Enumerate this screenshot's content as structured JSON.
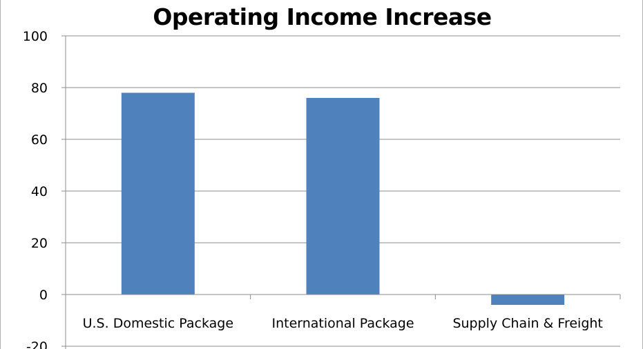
{
  "chart_data": {
    "type": "bar",
    "title": "Operating Income Increase",
    "xlabel": "",
    "ylabel": "",
    "categories": [
      "U.S. Domestic Package",
      "International Package",
      "Supply Chain & Freight"
    ],
    "values": [
      78,
      76,
      -4
    ],
    "ylim": [
      -20,
      100
    ],
    "yticks": [
      100,
      80,
      60,
      40,
      20,
      0,
      -20
    ],
    "grid": true,
    "legend": "none",
    "bar_color": "#4f81bd",
    "grid_color": "#8c8c8c"
  }
}
